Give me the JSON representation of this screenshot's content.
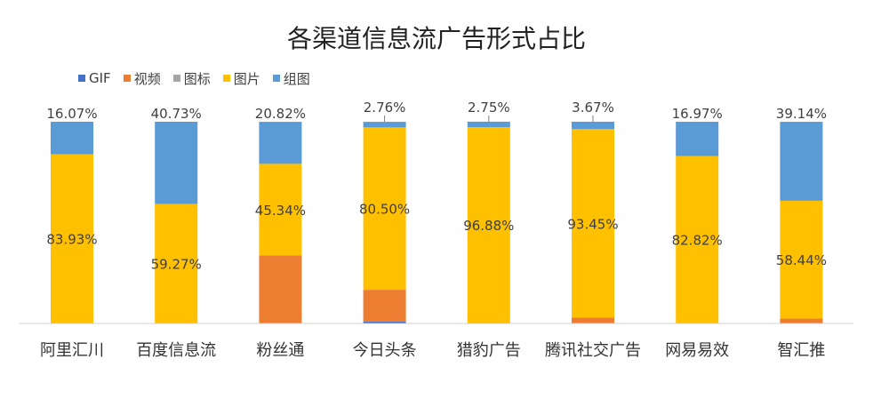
{
  "chart_data": {
    "type": "bar",
    "stacked": true,
    "title": "各渠道信息流广告形式占比",
    "legend_position": "top-left",
    "grid": false,
    "ylim": [
      0,
      100
    ],
    "categories": [
      "阿里汇川",
      "百度信息流",
      "粉丝通",
      "今日头条",
      "猎豹广告",
      "腾讯社交广告",
      "网易易效",
      "智汇推"
    ],
    "series": [
      {
        "name": "GIF",
        "color": "#4472C4",
        "values": [
          0,
          0,
          0,
          1.0,
          0,
          0,
          0,
          0
        ]
      },
      {
        "name": "视频",
        "color": "#ED7D31",
        "values": [
          0,
          0,
          33.8,
          15.7,
          0,
          2.9,
          0,
          2.4
        ]
      },
      {
        "name": "图标",
        "color": "#A5A5A5",
        "values": [
          0,
          0,
          0,
          0,
          0.4,
          0,
          0.2,
          0
        ]
      },
      {
        "name": "图片",
        "color": "#FFC000",
        "values": [
          83.93,
          59.27,
          45.34,
          80.5,
          96.88,
          93.45,
          82.82,
          58.44
        ]
      },
      {
        "name": "组图",
        "color": "#5B9BD5",
        "values": [
          16.07,
          40.73,
          20.82,
          2.76,
          2.75,
          3.67,
          16.97,
          39.14
        ]
      }
    ],
    "data_labels": {
      "图片": [
        "83.93%",
        "59.27%",
        "45.34%",
        "80.50%",
        "96.88%",
        "93.45%",
        "82.82%",
        "58.44%"
      ],
      "组图": [
        "16.07%",
        "40.73%",
        "20.82%",
        "2.76%",
        "2.75%",
        "3.67%",
        "16.97%",
        "39.14%"
      ]
    }
  }
}
